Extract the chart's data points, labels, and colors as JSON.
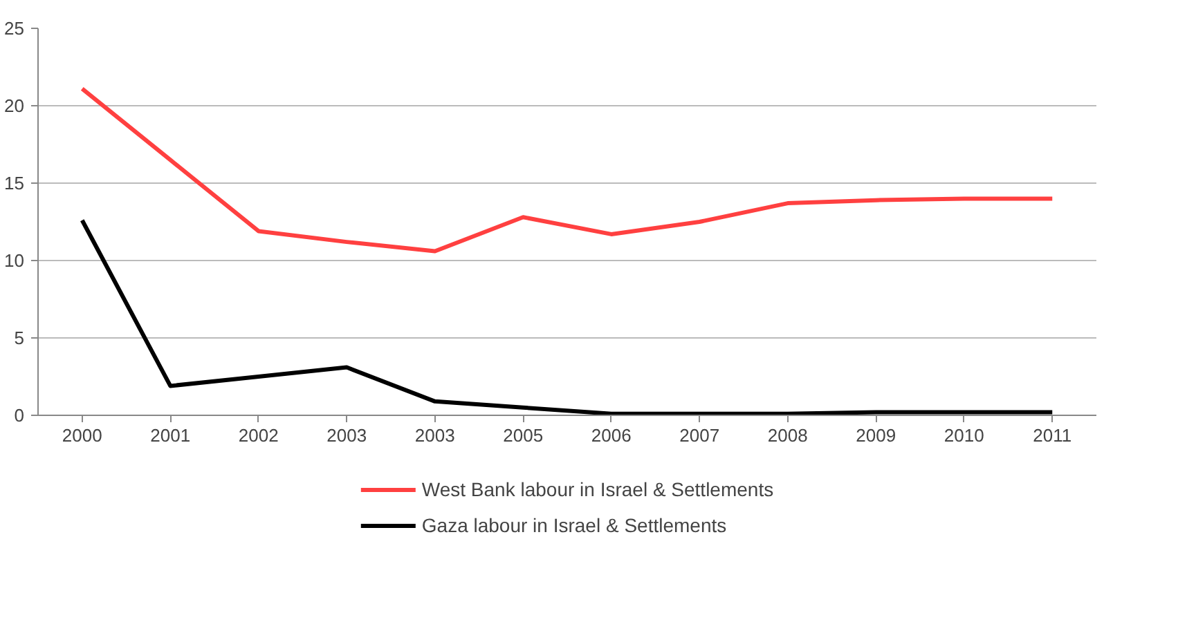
{
  "chart_data": {
    "type": "line",
    "categories": [
      "2000",
      "2001",
      "2002",
      "2003",
      "2003",
      "2005",
      "2006",
      "2007",
      "2008",
      "2009",
      "2010",
      "2011"
    ],
    "series": [
      {
        "name": "West Bank labour in Israel & Settlements",
        "color": "#ff4040",
        "values": [
          21.1,
          16.5,
          11.9,
          11.2,
          10.6,
          12.8,
          11.7,
          12.5,
          13.7,
          13.9,
          14.0,
          14.0
        ]
      },
      {
        "name": "Gaza labour in Israel & Settlements",
        "color": "#000000",
        "values": [
          12.6,
          1.9,
          2.5,
          3.1,
          0.9,
          0.5,
          0.1,
          0.1,
          0.1,
          0.2,
          0.2,
          0.2
        ]
      }
    ],
    "ylim": [
      0,
      25
    ],
    "yticks": [
      0,
      5,
      10,
      15,
      20,
      25
    ],
    "grid": "y",
    "legend": "bottom",
    "marker": "none",
    "line_style": "solid"
  }
}
